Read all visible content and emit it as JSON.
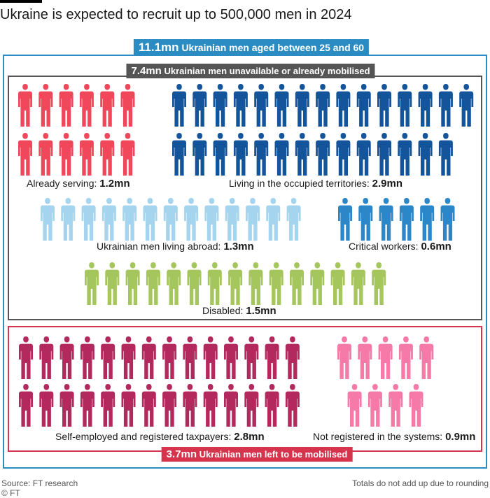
{
  "title": "Ukraine is expected to recruit up to 500,000 men in 2024",
  "headers": {
    "total": {
      "value": "11.1mn",
      "text": "Ukrainian men aged between 25 and 60"
    },
    "unavailable": {
      "value": "7.4mn",
      "text": "Ukrainian men unavailable or already mobilised"
    },
    "left": {
      "value": "3.7mn",
      "text": "Ukrainian men left to be mobilised"
    }
  },
  "colors": {
    "total_box": "#2b8cc4",
    "unavailable_box": "#555555",
    "left_box": "#d6334d"
  },
  "chart_data": {
    "type": "pictogram",
    "unit": "mn",
    "categories": [
      {
        "key": "already_serving",
        "label": "Already serving:",
        "value": 1.2,
        "value_label": "1.2mn",
        "icons": 12,
        "color": "#f0475a",
        "group": "unavailable"
      },
      {
        "key": "occupied",
        "label": "Living in the occupied territories:",
        "value": 2.9,
        "value_label": "2.9mn",
        "icons": 29,
        "color": "#14549b",
        "group": "unavailable"
      },
      {
        "key": "abroad",
        "label": "Ukrainian men living abroad:",
        "value": 1.3,
        "value_label": "1.3mn",
        "icons": 13,
        "color": "#a4d4ee",
        "group": "unavailable"
      },
      {
        "key": "critical",
        "label": "Critical workers:",
        "value": 0.6,
        "value_label": "0.6mn",
        "icons": 6,
        "color": "#2b87c8",
        "group": "unavailable"
      },
      {
        "key": "disabled",
        "label": "Disabled:",
        "value": 1.5,
        "value_label": "1.5mn",
        "icons": 15,
        "color": "#a5c65c",
        "group": "unavailable"
      },
      {
        "key": "self_employed",
        "label": "Self-employed and registered taxpayers:",
        "value": 2.8,
        "value_label": "2.8mn",
        "icons": 28,
        "color": "#b3295e",
        "group": "left"
      },
      {
        "key": "not_registered",
        "label": "Not registered in the systems:",
        "value": 0.9,
        "value_label": "0.9mn",
        "icons": 9,
        "color": "#f57aa8",
        "group": "left"
      }
    ]
  },
  "footer": {
    "source": "Source: FT research",
    "copyright": "© FT",
    "note": "Totals do not add up due to rounding"
  }
}
